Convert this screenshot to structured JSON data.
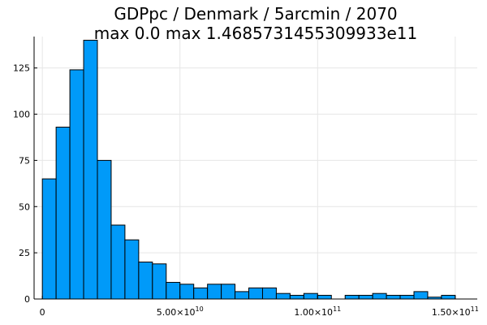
{
  "chart_data": {
    "type": "bar",
    "title_lines": [
      "GDPpc / Denmark / 5arcmin / 2070",
      "max 0.0  max 1.4685731455309933e11"
    ],
    "xlabel": "",
    "ylabel": "",
    "xlim": [
      -3000000000.0,
      158000000000.0
    ],
    "ylim": [
      0,
      142
    ],
    "grid": true,
    "legend": false,
    "bar_color": "#009af9",
    "bin_width": 5000000000.0,
    "bin_start": 0,
    "values": [
      65,
      93,
      124,
      140,
      75,
      40,
      32,
      20,
      19,
      9,
      8,
      6,
      8,
      8,
      4,
      6,
      6,
      3,
      2,
      3,
      2,
      0,
      2,
      2,
      3,
      2,
      2,
      4,
      1,
      2
    ],
    "x_ticks": [
      {
        "value": 0,
        "mantissa": "0",
        "exp": ""
      },
      {
        "value": 50000000000.0,
        "mantissa": "5.00×10",
        "exp": "10"
      },
      {
        "value": 100000000000.0,
        "mantissa": "1.00×10",
        "exp": "11"
      },
      {
        "value": 150000000000.0,
        "mantissa": "1.50×10",
        "exp": "11"
      }
    ],
    "y_ticks": [
      {
        "value": 0,
        "label": "0"
      },
      {
        "value": 25,
        "label": "25"
      },
      {
        "value": 50,
        "label": "50"
      },
      {
        "value": 75,
        "label": "75"
      },
      {
        "value": 100,
        "label": "100"
      },
      {
        "value": 125,
        "label": "125"
      }
    ]
  }
}
